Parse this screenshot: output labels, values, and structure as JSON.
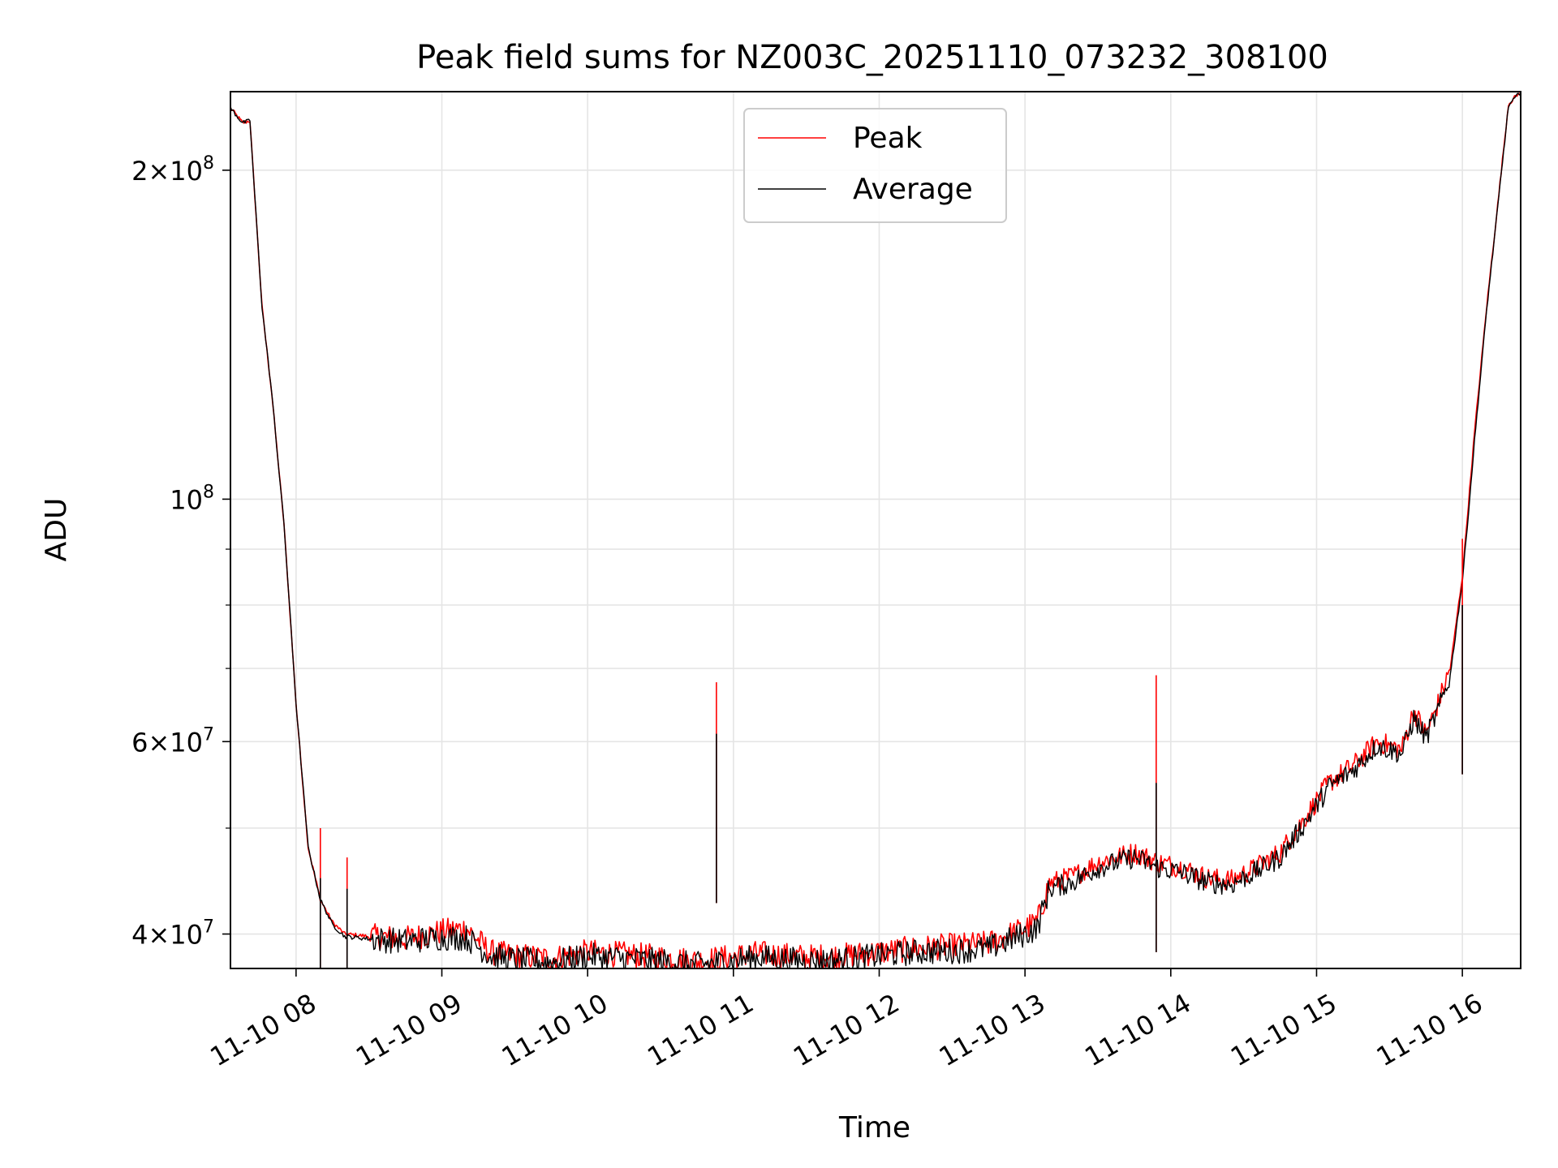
{
  "chart_data": {
    "type": "line",
    "title": "Peak field sums for NZ003C_20251110_073232_308100",
    "xlabel": "Time",
    "ylabel": "ADU",
    "yscale": "log",
    "xlim": [
      "2025-11-10 07:33",
      "2025-11-10 16:24"
    ],
    "ylim": [
      37200000,
      236000000
    ],
    "grid": true,
    "legend": {
      "placement": "top-center"
    },
    "x_ticks": [
      "11-10 08",
      "11-10 09",
      "11-10 10",
      "11-10 11",
      "11-10 12",
      "11-10 13",
      "11-10 14",
      "11-10 15",
      "11-10 16"
    ],
    "y_ticks": [
      {
        "value": 40000000,
        "base": "4",
        "exp": "7"
      },
      {
        "value": 60000000,
        "base": "6",
        "exp": "7"
      },
      {
        "value": 100000000,
        "base": "",
        "exp": "8"
      },
      {
        "value": 200000000,
        "base": "2",
        "exp": "8"
      }
    ],
    "y_minor": [
      50000000,
      70000000,
      80000000,
      90000000
    ],
    "series": [
      {
        "name": "Peak",
        "color": "#ff0000",
        "points": [
          [
            "07:33",
            228000000
          ],
          [
            "07:38",
            221000000
          ],
          [
            "07:41",
            222000000
          ],
          [
            "07:43",
            190000000
          ],
          [
            "07:46",
            150000000
          ],
          [
            "07:50",
            125000000
          ],
          [
            "07:55",
            95000000
          ],
          [
            "08:00",
            65000000
          ],
          [
            "08:05",
            48000000
          ],
          [
            "08:10",
            43000000
          ],
          [
            "08:15",
            41000000
          ],
          [
            "08:20",
            40000000
          ],
          [
            "08:30",
            39800000
          ],
          [
            "08:45",
            39600000
          ],
          [
            "09:00",
            40200000
          ],
          [
            "09:10",
            40500000
          ],
          [
            "09:20",
            38500000
          ],
          [
            "09:30",
            38200000
          ],
          [
            "09:45",
            38000000
          ],
          [
            "10:00",
            38500000
          ],
          [
            "10:15",
            38300000
          ],
          [
            "10:30",
            38100000
          ],
          [
            "10:45",
            37800000
          ],
          [
            "10:55",
            38000000
          ],
          [
            "11:10",
            38400000
          ],
          [
            "11:30",
            38100000
          ],
          [
            "11:45",
            38200000
          ],
          [
            "12:00",
            38500000
          ],
          [
            "12:15",
            38800000
          ],
          [
            "12:30",
            39000000
          ],
          [
            "12:45",
            39200000
          ],
          [
            "13:00",
            40500000
          ],
          [
            "13:05",
            41000000
          ],
          [
            "13:10",
            44500000
          ],
          [
            "13:20",
            45200000
          ],
          [
            "13:30",
            46500000
          ],
          [
            "13:45",
            47500000
          ],
          [
            "13:55",
            46500000
          ],
          [
            "14:05",
            46000000
          ],
          [
            "14:15",
            45000000
          ],
          [
            "14:25",
            44800000
          ],
          [
            "14:35",
            46000000
          ],
          [
            "14:45",
            47500000
          ],
          [
            "14:55",
            51000000
          ],
          [
            "15:05",
            55000000
          ],
          [
            "15:15",
            57000000
          ],
          [
            "15:25",
            60000000
          ],
          [
            "15:35",
            59000000
          ],
          [
            "15:40",
            64000000
          ],
          [
            "15:45",
            61000000
          ],
          [
            "15:50",
            65000000
          ],
          [
            "15:55",
            70000000
          ],
          [
            "16:00",
            85000000
          ],
          [
            "16:03",
            102000000
          ],
          [
            "16:05",
            115000000
          ],
          [
            "16:10",
            150000000
          ],
          [
            "16:15",
            190000000
          ],
          [
            "16:19",
            230000000
          ],
          [
            "16:24",
            236000000
          ]
        ]
      },
      {
        "name": "Average",
        "color": "#000000",
        "points": [
          [
            "07:33",
            228000000
          ],
          [
            "07:38",
            221000000
          ],
          [
            "07:41",
            222000000
          ],
          [
            "07:43",
            190000000
          ],
          [
            "07:46",
            150000000
          ],
          [
            "07:50",
            125000000
          ],
          [
            "07:55",
            95000000
          ],
          [
            "08:00",
            65000000
          ],
          [
            "08:05",
            48000000
          ],
          [
            "08:10",
            43000000
          ],
          [
            "08:15",
            40800000
          ],
          [
            "08:20",
            39800000
          ],
          [
            "08:30",
            39600000
          ],
          [
            "08:45",
            39400000
          ],
          [
            "09:00",
            39700000
          ],
          [
            "09:10",
            39700000
          ],
          [
            "09:20",
            38200000
          ],
          [
            "09:30",
            37900000
          ],
          [
            "09:45",
            37700000
          ],
          [
            "10:00",
            38200000
          ],
          [
            "10:15",
            38000000
          ],
          [
            "10:30",
            37800000
          ],
          [
            "10:45",
            37500000
          ],
          [
            "10:55",
            37700000
          ],
          [
            "11:10",
            38100000
          ],
          [
            "11:30",
            37800000
          ],
          [
            "11:45",
            37900000
          ],
          [
            "12:00",
            38200000
          ],
          [
            "12:15",
            38500000
          ],
          [
            "12:30",
            38600000
          ],
          [
            "12:45",
            38800000
          ],
          [
            "13:00",
            40000000
          ],
          [
            "13:05",
            40500000
          ],
          [
            "13:10",
            44000000
          ],
          [
            "13:20",
            44700000
          ],
          [
            "13:30",
            46000000
          ],
          [
            "13:45",
            47000000
          ],
          [
            "13:55",
            46000000
          ],
          [
            "14:05",
            45500000
          ],
          [
            "14:15",
            44600000
          ],
          [
            "14:25",
            44400000
          ],
          [
            "14:35",
            45600000
          ],
          [
            "14:45",
            47000000
          ],
          [
            "14:55",
            50500000
          ],
          [
            "15:05",
            54500000
          ],
          [
            "15:15",
            56500000
          ],
          [
            "15:25",
            59500000
          ],
          [
            "15:35",
            58500000
          ],
          [
            "15:40",
            63000000
          ],
          [
            "15:45",
            60500000
          ],
          [
            "15:50",
            64000000
          ],
          [
            "15:55",
            69000000
          ],
          [
            "16:00",
            84000000
          ],
          [
            "16:03",
            100000000
          ],
          [
            "16:05",
            113000000
          ],
          [
            "16:10",
            149000000
          ],
          [
            "16:15",
            189000000
          ],
          [
            "16:19",
            229000000
          ],
          [
            "16:24",
            236000000
          ]
        ]
      }
    ],
    "spikes": [
      {
        "x": "08:10",
        "peak": 50000000,
        "average": 45000000
      },
      {
        "x": "08:21",
        "peak": 47000000,
        "average": 44000000
      },
      {
        "x": "10:53",
        "peak": 68000000,
        "average": 61000000
      },
      {
        "x": "13:54",
        "peak": 69000000,
        "average": 55000000
      },
      {
        "x": "16:00",
        "peak": 92000000,
        "average": 80000000
      }
    ]
  }
}
